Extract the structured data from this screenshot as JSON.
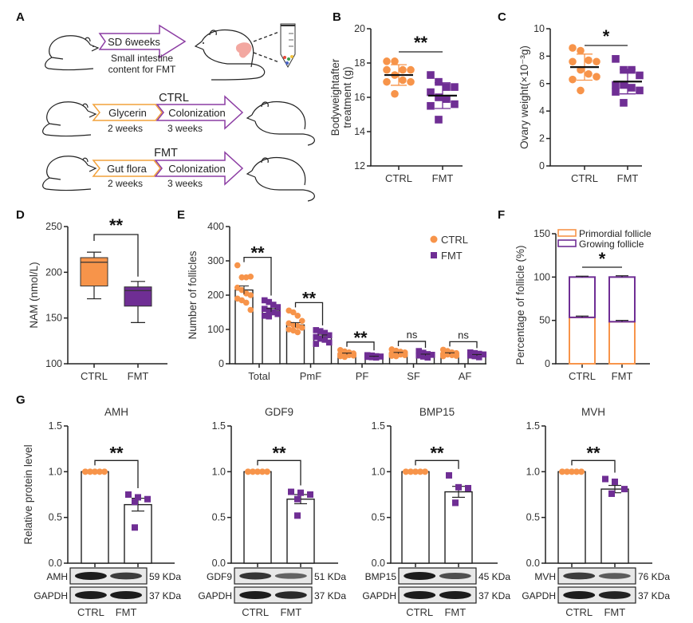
{
  "colors": {
    "ctrl": "#f7944a",
    "fmt": "#6f2e94",
    "axis": "#222222",
    "intestine": "#f0928a",
    "glycerin_arrow": "#f2a23c",
    "colonization_arrow": "#8c3da3"
  },
  "panel_a": {
    "letter": "A",
    "step1": {
      "arrow_label": "SD 6weeks",
      "caption_line1": "Small intestine",
      "caption_line2": "content for FMT"
    },
    "ctrl": {
      "title": "CTRL",
      "stage1": "Glycerin",
      "stage1_duration": "2 weeks",
      "stage2": "Colonization",
      "stage2_duration": "3 weeks"
    },
    "fmt": {
      "title": "FMT",
      "stage1": "Gut flora",
      "stage1_duration": "2 weeks",
      "stage2": "Colonization",
      "stage2_duration": "3 weeks"
    }
  },
  "chart_data": [
    {
      "id": "B",
      "letter": "B",
      "type": "scatter",
      "ylabel_line1": "Bodyweightafter",
      "ylabel_line2": "treatment (g)",
      "ylim": [
        12,
        20
      ],
      "yticks": [
        12,
        14,
        16,
        18,
        20
      ],
      "categories": [
        "CTRL",
        "FMT"
      ],
      "significance": "**",
      "series": [
        {
          "name": "CTRL",
          "marker": "circle",
          "mean": 17.3,
          "sd": 0.6,
          "values": [
            18.1,
            18.1,
            17.6,
            17.6,
            17.6,
            17.3,
            17.0,
            16.9,
            16.9,
            16.2
          ]
        },
        {
          "name": "FMT",
          "marker": "square",
          "mean": 16.1,
          "sd": 0.75,
          "values": [
            17.3,
            16.9,
            16.6,
            16.6,
            16.3,
            16.0,
            15.9,
            15.6,
            15.5,
            14.7
          ]
        }
      ]
    },
    {
      "id": "C",
      "letter": "C",
      "type": "scatter",
      "ylabel": "Ovary weight(×10⁻³g)",
      "ylim": [
        0,
        10
      ],
      "yticks": [
        0,
        2,
        4,
        6,
        8,
        10
      ],
      "categories": [
        "CTRL",
        "FMT"
      ],
      "significance": "*",
      "series": [
        {
          "name": "CTRL",
          "marker": "circle",
          "mean": 7.2,
          "sd": 0.95,
          "values": [
            8.6,
            8.4,
            7.7,
            7.6,
            7.6,
            7.0,
            6.7,
            6.5,
            6.3,
            5.5
          ]
        },
        {
          "name": "FMT",
          "marker": "square",
          "mean": 6.15,
          "sd": 0.9,
          "values": [
            7.8,
            7.0,
            7.0,
            6.6,
            5.9,
            5.9,
            5.7,
            5.5,
            5.4,
            4.6
          ]
        }
      ]
    },
    {
      "id": "D",
      "letter": "D",
      "type": "box",
      "ylabel": "NAM (nmol/L)",
      "ylim": [
        100,
        250
      ],
      "yticks": [
        100,
        150,
        200,
        250
      ],
      "categories": [
        "CTRL",
        "FMT"
      ],
      "significance": "**",
      "series": [
        {
          "name": "CTRL",
          "min": 171,
          "q1": 185,
          "median": 211,
          "q3": 216,
          "max": 222
        },
        {
          "name": "FMT",
          "min": 145,
          "q1": 163,
          "median": 180,
          "q3": 184,
          "max": 190
        }
      ]
    },
    {
      "id": "E",
      "letter": "E",
      "type": "bar",
      "ylabel": "Number of follicles",
      "ylim": [
        0,
        400
      ],
      "yticks": [
        0,
        100,
        200,
        300,
        400
      ],
      "categories": [
        "Total",
        "PmF",
        "PF",
        "SF",
        "AF"
      ],
      "significance": [
        "**",
        "**",
        "**",
        "ns",
        "ns"
      ],
      "legend": {
        "position": "top-right",
        "entries": [
          "CTRL",
          "FMT"
        ]
      },
      "series": [
        {
          "name": "CTRL",
          "marker": "circle",
          "means": [
            215,
            113,
            29,
            31,
            30
          ],
          "sem": [
            12,
            7,
            2,
            2,
            2
          ],
          "points": [
            [
              287,
              252,
              252,
              254,
              222,
              215,
              205,
              200,
              190,
              185,
              178,
              157
            ],
            [
              155,
              150,
              140,
              125,
              118,
              113,
              110,
              105,
              100,
              97,
              92
            ],
            [
              40,
              36,
              33,
              30,
              28,
              26,
              25,
              24,
              22,
              20
            ],
            [
              42,
              38,
              35,
              33,
              30,
              28,
              27,
              25,
              23,
              22
            ],
            [
              41,
              37,
              33,
              31,
              29,
              27,
              25,
              23,
              22
            ]
          ]
        },
        {
          "name": "FMT",
          "marker": "square",
          "means": [
            156,
            79,
            21,
            26,
            25
          ],
          "sem": [
            5,
            5,
            1,
            2,
            2
          ],
          "points": [
            [
              185,
              180,
              172,
              165,
              160,
              155,
              150,
              145,
              140,
              138
            ],
            [
              98,
              95,
              90,
              83,
              78,
              73,
              70,
              62,
              58
            ],
            [
              25,
              24,
              22,
              21,
              20,
              19,
              18
            ],
            [
              37,
              32,
              28,
              26,
              24,
              21,
              18
            ],
            [
              33,
              31,
              29,
              27,
              24,
              22,
              19
            ]
          ]
        }
      ]
    },
    {
      "id": "F",
      "letter": "F",
      "type": "stacked-bar",
      "ylabel": "Percentage of follicle (%)",
      "ylim": [
        0,
        150
      ],
      "yticks": [
        0,
        50,
        100,
        150
      ],
      "categories": [
        "CTRL",
        "FMT"
      ],
      "significance": "*",
      "legend": {
        "position": "top",
        "entries": [
          "Primordial follicle",
          "Growing follicle"
        ]
      },
      "series": [
        {
          "name": "Primordial follicle",
          "values": [
            53.5,
            48.5
          ],
          "err": [
            1.5,
            1.5
          ]
        },
        {
          "name": "Growing follicle",
          "values": [
            46.5,
            51.5
          ],
          "err": [
            1.0,
            1.5
          ]
        }
      ]
    },
    {
      "id": "G-AMH",
      "letter": "G",
      "type": "bar",
      "title": "AMH",
      "ylabel": "Relative protein level",
      "ylim": [
        0,
        1.5
      ],
      "yticks": [
        "0.0",
        "0.5",
        "1.0",
        "1.5"
      ],
      "categories": [
        "CTRL",
        "FMT"
      ],
      "significance": "**",
      "series": [
        {
          "name": "CTRL",
          "mean": 1.0,
          "sem": 0,
          "points": [
            1,
            1,
            1,
            1,
            1
          ]
        },
        {
          "name": "FMT",
          "mean": 0.64,
          "sem": 0.07,
          "points": [
            0.75,
            0.72,
            0.7,
            0.67,
            0.39
          ]
        }
      ],
      "blot": {
        "target": "AMH",
        "target_kda": "59 KDa",
        "loading": "GAPDH",
        "loading_kda": "37 KDa",
        "lanes": [
          "CTRL",
          "FMT"
        ],
        "target_intensity": [
          1.0,
          0.75
        ],
        "loading_intensity": [
          1.0,
          1.0
        ]
      }
    },
    {
      "id": "G-GDF9",
      "type": "bar",
      "title": "GDF9",
      "ylim": [
        0,
        1.5
      ],
      "yticks": [
        "0.0",
        "0.5",
        "1.0",
        "1.5"
      ],
      "categories": [
        "CTRL",
        "FMT"
      ],
      "significance": "**",
      "series": [
        {
          "name": "CTRL",
          "mean": 1.0,
          "sem": 0,
          "points": [
            1,
            1,
            1,
            1,
            1
          ]
        },
        {
          "name": "FMT",
          "mean": 0.7,
          "sem": 0.05,
          "points": [
            0.78,
            0.77,
            0.75,
            0.7,
            0.52
          ]
        }
      ],
      "blot": {
        "target": "GDF9",
        "target_kda": "51 KDa",
        "loading": "GAPDH",
        "loading_kda": "37 KDa",
        "lanes": [
          "CTRL",
          "FMT"
        ],
        "target_intensity": [
          0.8,
          0.45
        ],
        "loading_intensity": [
          1.0,
          0.9
        ]
      }
    },
    {
      "id": "G-BMP15",
      "type": "bar",
      "title": "BMP15",
      "ylim": [
        0,
        1.5
      ],
      "yticks": [
        "0.0",
        "0.5",
        "1.0",
        "1.5"
      ],
      "categories": [
        "CTRL",
        "FMT"
      ],
      "significance": "**",
      "series": [
        {
          "name": "CTRL",
          "mean": 1.0,
          "sem": 0,
          "points": [
            1,
            1,
            1,
            1,
            1
          ]
        },
        {
          "name": "FMT",
          "mean": 0.78,
          "sem": 0.06,
          "points": [
            0.96,
            0.83,
            0.82,
            0.66,
            0.66
          ]
        }
      ],
      "blot": {
        "target": "BMP15",
        "target_kda": "45 KDa",
        "loading": "GAPDH",
        "loading_kda": "37 KDa",
        "lanes": [
          "CTRL",
          "FMT"
        ],
        "target_intensity": [
          1.0,
          0.6
        ],
        "loading_intensity": [
          1.0,
          1.0
        ]
      }
    },
    {
      "id": "G-MVH",
      "type": "bar",
      "title": "MVH",
      "ylim": [
        0,
        1.5
      ],
      "yticks": [
        "0.0",
        "0.5",
        "1.0",
        "1.5"
      ],
      "categories": [
        "CTRL",
        "FMT"
      ],
      "significance": "**",
      "series": [
        {
          "name": "CTRL",
          "mean": 1.0,
          "sem": 0,
          "points": [
            1,
            1,
            1,
            1,
            1
          ]
        },
        {
          "name": "FMT",
          "mean": 0.81,
          "sem": 0.04,
          "points": [
            0.92,
            0.89,
            0.81,
            0.76,
            0.76
          ]
        }
      ],
      "blot": {
        "target": "MVH",
        "target_kda": "76 KDa",
        "loading": "GAPDH",
        "loading_kda": "37 KDa",
        "lanes": [
          "CTRL",
          "FMT"
        ],
        "target_intensity": [
          0.75,
          0.5
        ],
        "loading_intensity": [
          1.0,
          0.95
        ]
      }
    }
  ]
}
